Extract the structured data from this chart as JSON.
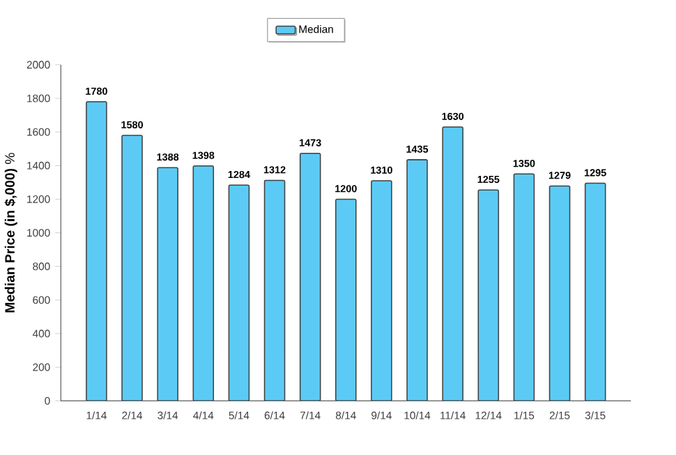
{
  "chart_data": {
    "type": "bar",
    "categories": [
      "1/14",
      "2/14",
      "3/14",
      "4/14",
      "5/14",
      "6/14",
      "7/14",
      "8/14",
      "9/14",
      "10/14",
      "11/14",
      "12/14",
      "1/15",
      "2/15",
      "3/15"
    ],
    "series": [
      {
        "name": "Median",
        "color": "#5bcbf5",
        "values": [
          1780,
          1580,
          1388,
          1398,
          1284,
          1312,
          1473,
          1200,
          1310,
          1435,
          1630,
          1255,
          1350,
          1279,
          1295
        ]
      }
    ],
    "ylabel": "**Median Price (in $,000)** %",
    "ylim": [
      0,
      2000
    ],
    "yticks": [
      0,
      200,
      400,
      600,
      800,
      1000,
      1200,
      1400,
      1600,
      1800,
      2000
    ],
    "data_labels": true,
    "legend": "top",
    "grid": false
  }
}
